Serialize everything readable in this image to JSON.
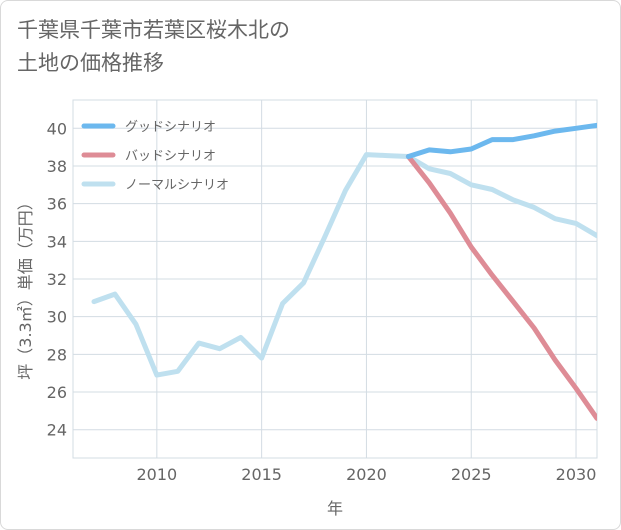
{
  "title": "千葉県千葉市若葉区桜木北の\n土地の価格推移",
  "chart_data": {
    "type": "line",
    "title": "千葉県千葉市若葉区桜木北の土地の価格推移",
    "xlabel": "年",
    "ylabel": "坪（3.3㎡）単価（万円）",
    "xlim": [
      2006,
      2031
    ],
    "ylim": [
      22.5,
      41.5
    ],
    "xticks": [
      2010,
      2015,
      2020,
      2025,
      2030
    ],
    "yticks": [
      24,
      26,
      28,
      30,
      32,
      34,
      36,
      38,
      40
    ],
    "grid": true,
    "legend": "top-left",
    "series": [
      {
        "name": "グッドシナリオ",
        "color": "#6cb8ee",
        "x": [
          2022,
          2023,
          2024,
          2025,
          2026,
          2027,
          2028,
          2029,
          2030,
          2031
        ],
        "values": [
          38.5,
          38.85,
          38.75,
          38.9,
          39.4,
          39.4,
          39.6,
          39.85,
          40.0,
          40.15
        ]
      },
      {
        "name": "バッドシナリオ",
        "color": "#de8c96",
        "x": [
          2022,
          2023,
          2024,
          2025,
          2026,
          2027,
          2028,
          2029,
          2030,
          2031
        ],
        "values": [
          38.5,
          37.1,
          35.5,
          33.7,
          32.2,
          30.8,
          29.4,
          27.7,
          26.2,
          24.6
        ]
      },
      {
        "name": "ノーマルシナリオ",
        "color": "#bfe0ef",
        "x": [
          2007,
          2008,
          2009,
          2010,
          2011,
          2012,
          2013,
          2014,
          2015,
          2016,
          2017,
          2018,
          2019,
          2020,
          2021,
          2022,
          2023,
          2024,
          2025,
          2026,
          2027,
          2028,
          2029,
          2030,
          2031
        ],
        "values": [
          30.8,
          31.2,
          29.6,
          26.9,
          27.1,
          28.6,
          28.3,
          28.9,
          27.8,
          30.7,
          31.8,
          34.2,
          36.7,
          38.6,
          38.55,
          38.5,
          37.85,
          37.6,
          37.0,
          36.75,
          36.2,
          35.8,
          35.2,
          34.95,
          34.3
        ]
      }
    ]
  }
}
